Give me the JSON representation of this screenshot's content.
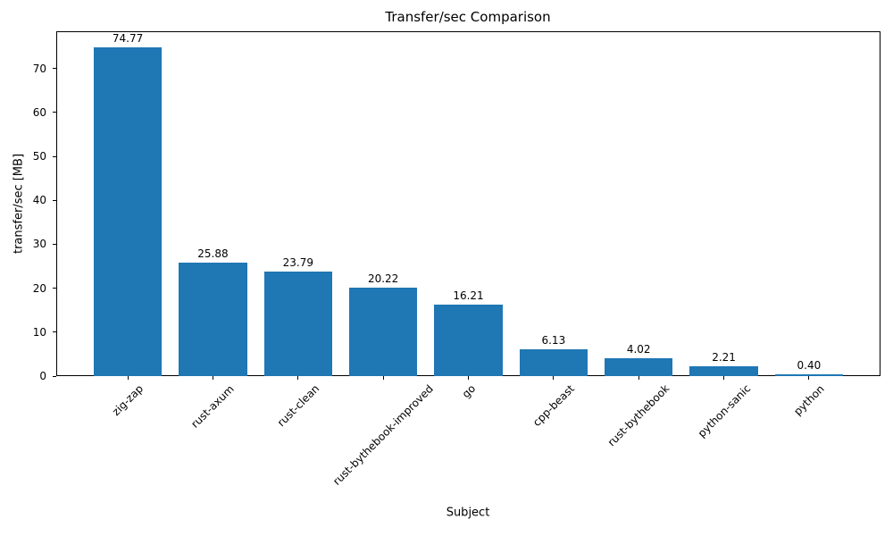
{
  "chart_data": {
    "type": "bar",
    "title": "Transfer/sec Comparison",
    "xlabel": "Subject",
    "ylabel": "transfer/sec [MB]",
    "categories": [
      "zig-zap",
      "rust-axum",
      "rust-clean",
      "rust-bythebook-improved",
      "go",
      "cpp-beast",
      "rust-bythebook",
      "python-sanic",
      "python"
    ],
    "values": [
      74.77,
      25.88,
      23.79,
      20.22,
      16.21,
      6.13,
      4.02,
      2.21,
      0.4
    ],
    "bar_labels": [
      "74.77",
      "25.88",
      "23.79",
      "20.22",
      "16.21",
      "6.13",
      "4.02",
      "2.21",
      "0.40"
    ],
    "bar_color": "#1f77b4",
    "axis_color": "#000000",
    "background_color": "#ffffff",
    "ylim": [
      0,
      78.5
    ],
    "yticks": [
      0,
      10,
      20,
      30,
      40,
      50,
      60,
      70
    ],
    "xlim": [
      -0.84,
      8.84
    ],
    "bar_width": 0.8,
    "x_tick_rotation_deg": 45,
    "grid": false,
    "legend": null
  }
}
